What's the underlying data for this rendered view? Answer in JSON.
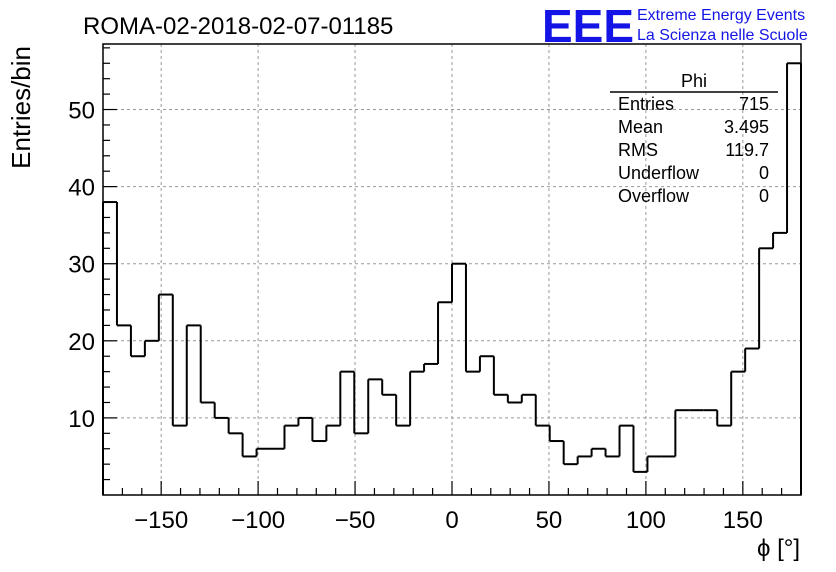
{
  "header": {
    "run_title": "ROMA-02-2018-02-07-01185",
    "logo_text": "EEE",
    "logo_line1": "Extreme Energy Events",
    "logo_line2": "La Scienza nelle Scuole",
    "logo_color": "#1414e6"
  },
  "stats_box": {
    "title": "Phi",
    "rows": [
      {
        "label": "Entries",
        "value": "715"
      },
      {
        "label": "Mean",
        "value": "3.495"
      },
      {
        "label": "RMS",
        "value": "119.7"
      },
      {
        "label": "Underflow",
        "value": "0"
      },
      {
        "label": "Overflow",
        "value": "0"
      }
    ]
  },
  "chart_data": {
    "type": "histogram",
    "title": "ROMA-02-2018-02-07-01185",
    "xlabel": "ϕ [°]",
    "ylabel": "Entries/bin",
    "xlim": [
      -180,
      180
    ],
    "ylim": [
      0,
      58.5
    ],
    "bin_width": 7.2,
    "grid": true,
    "xticks": [
      -150,
      -100,
      -50,
      0,
      50,
      100,
      150
    ],
    "xtick_labels": [
      "−150",
      "−100",
      "−50",
      "0",
      "50",
      "100",
      "150"
    ],
    "yticks": [
      10,
      20,
      30,
      40,
      50
    ],
    "ytick_labels": [
      "10",
      "20",
      "30",
      "40",
      "50"
    ],
    "values": [
      38,
      22,
      18,
      20,
      26,
      9,
      22,
      12,
      10,
      8,
      5,
      6,
      6,
      9,
      10,
      7,
      9,
      16,
      8,
      15,
      13,
      9,
      16,
      17,
      25,
      30,
      16,
      18,
      13,
      12,
      13,
      9,
      7,
      4,
      5,
      6,
      5,
      9,
      3,
      5,
      5,
      11,
      11,
      11,
      9,
      16,
      19,
      32,
      34,
      56
    ]
  }
}
